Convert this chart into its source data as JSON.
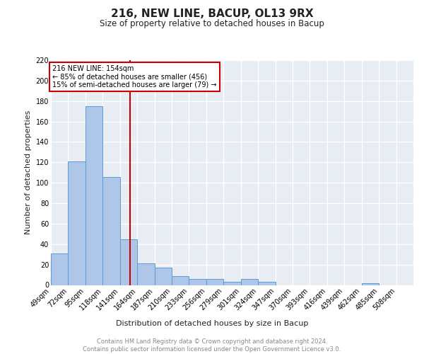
{
  "title1": "216, NEW LINE, BACUP, OL13 9RX",
  "title2": "Size of property relative to detached houses in Bacup",
  "xlabel": "Distribution of detached houses by size in Bacup",
  "ylabel": "Number of detached properties",
  "categories": [
    "49sqm",
    "72sqm",
    "95sqm",
    "118sqm",
    "141sqm",
    "164sqm",
    "187sqm",
    "210sqm",
    "233sqm",
    "256sqm",
    "279sqm",
    "301sqm",
    "324sqm",
    "347sqm",
    "370sqm",
    "393sqm",
    "416sqm",
    "439sqm",
    "462sqm",
    "485sqm",
    "508sqm"
  ],
  "values": [
    31,
    121,
    175,
    106,
    45,
    21,
    17,
    9,
    6,
    6,
    3,
    6,
    3,
    0,
    0,
    0,
    0,
    0,
    2,
    0,
    0
  ],
  "bar_color": "#aec6e8",
  "bar_edge_color": "#5b9bd5",
  "background_color": "#e8edf4",
  "grid_color": "#ffffff",
  "annotation_text": "216 NEW LINE: 154sqm\n← 85% of detached houses are smaller (456)\n15% of semi-detached houses are larger (79) →",
  "vline_x": 154,
  "vline_color": "#cc0000",
  "annotation_box_edge": "#cc0000",
  "ylim": [
    0,
    220
  ],
  "yticks": [
    0,
    20,
    40,
    60,
    80,
    100,
    120,
    140,
    160,
    180,
    200,
    220
  ],
  "footnote": "Contains HM Land Registry data © Crown copyright and database right 2024.\nContains public sector information licensed under the Open Government Licence v3.0.",
  "bin_width": 23,
  "title1_fontsize": 11,
  "title2_fontsize": 8.5,
  "ylabel_fontsize": 8,
  "xlabel_fontsize": 8,
  "footnote_fontsize": 6,
  "tick_fontsize": 7,
  "annot_fontsize": 7
}
